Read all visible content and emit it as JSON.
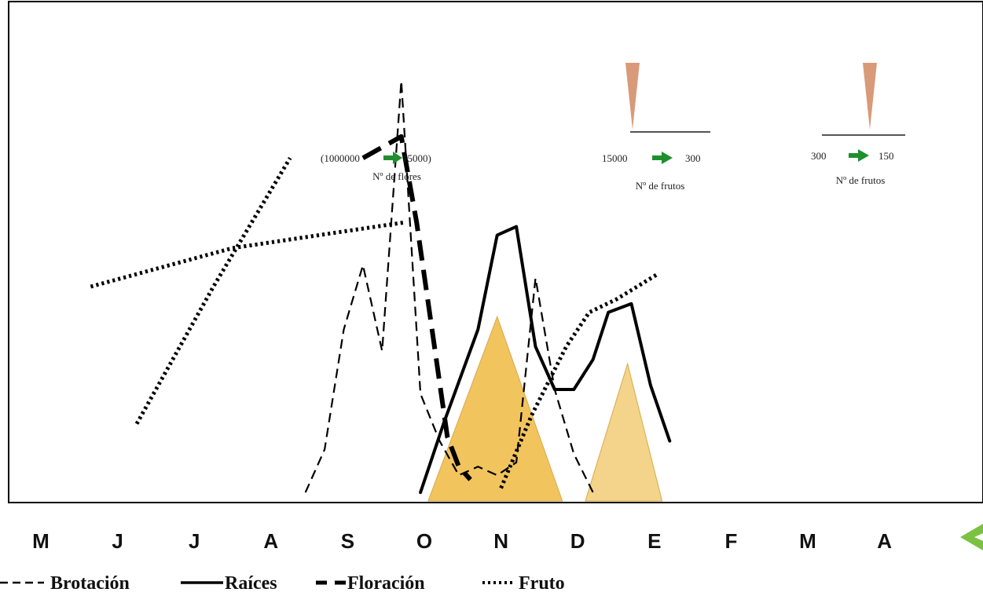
{
  "chart_data": {
    "type": "line",
    "x_axis": {
      "months": [
        "M",
        "J",
        "J",
        "A",
        "S",
        "O",
        "N",
        "D",
        "E",
        "F",
        "M",
        "A"
      ]
    },
    "y_axis": {
      "range": [
        0,
        100
      ],
      "ticks_shown": false
    },
    "grid": false,
    "series": [
      {
        "name": "Brotación",
        "style": "thin-dashed",
        "color": "#000000",
        "points": [
          [
            6.9,
            2
          ],
          [
            7.4,
            12
          ],
          [
            7.9,
            40
          ],
          [
            8.4,
            55
          ],
          [
            8.9,
            35
          ],
          [
            9.4,
            98
          ],
          [
            9.9,
            25
          ],
          [
            10.4,
            14
          ],
          [
            10.9,
            6
          ],
          [
            11.4,
            8
          ],
          [
            11.9,
            6
          ],
          [
            12.4,
            9
          ],
          [
            12.9,
            52
          ],
          [
            13.4,
            26
          ],
          [
            13.9,
            11
          ],
          [
            14.4,
            2
          ]
        ]
      },
      {
        "name": "Raíces",
        "style": "solid",
        "color": "#000000",
        "points": [
          [
            9.9,
            2
          ],
          [
            10.5,
            18
          ],
          [
            11.4,
            40
          ],
          [
            11.9,
            62
          ],
          [
            12.4,
            64
          ],
          [
            12.9,
            36
          ],
          [
            13.4,
            26
          ],
          [
            13.9,
            26
          ],
          [
            14.4,
            33
          ],
          [
            14.8,
            44
          ],
          [
            15.4,
            46
          ],
          [
            15.9,
            27
          ],
          [
            16.4,
            14
          ]
        ]
      },
      {
        "name": "Floración",
        "style": "thick-dashed",
        "color": "#000000",
        "points": [
          [
            8.4,
            80
          ],
          [
            9.4,
            85
          ],
          [
            9.8,
            65
          ],
          [
            10.2,
            40
          ],
          [
            10.6,
            15
          ],
          [
            10.9,
            8
          ],
          [
            11.2,
            5
          ]
        ]
      },
      {
        "name": "Fruto",
        "style": "dotted",
        "color": "#000000",
        "points": [
          [
            1.3,
            50
          ],
          [
            5.0,
            59
          ],
          [
            9.5,
            65
          ]
        ]
      },
      {
        "name": "Fruto",
        "style": "dotted",
        "color": "#000000",
        "points": [
          [
            2.5,
            18
          ],
          [
            4.5,
            50
          ],
          [
            6.5,
            80
          ]
        ]
      },
      {
        "name": "Fruto",
        "style": "dotted",
        "color": "#000000",
        "points": [
          [
            12.0,
            3
          ],
          [
            12.8,
            20
          ],
          [
            13.7,
            36
          ],
          [
            14.3,
            44
          ],
          [
            15.0,
            47
          ],
          [
            16.1,
            53
          ]
        ]
      }
    ],
    "triangles": [
      {
        "x0": 10.1,
        "peak": 11.9,
        "x1": 13.6,
        "height": 43,
        "color": "#f2c45e"
      },
      {
        "x0": 14.2,
        "peak": 15.3,
        "x1": 16.2,
        "height": 32,
        "color": "#f3d48a"
      }
    ],
    "annotations": [
      {
        "line1_left": "(1000000",
        "line1_right": "15000)",
        "line2": "Nº de flores"
      },
      {
        "line1_left": "15000",
        "line1_right": "300",
        "line2": "Nº de frutos"
      },
      {
        "line1_left": "300",
        "line1_right": "150",
        "line2": "Nº de frutos"
      }
    ],
    "legend": {
      "placement": "bottom",
      "entries": [
        {
          "label": "Brotación",
          "style": "thin-dashed"
        },
        {
          "label": "Raíces",
          "style": "solid"
        },
        {
          "label": "Floración",
          "style": "thick-dashed"
        },
        {
          "label": "Fruto",
          "style": "dotted"
        }
      ]
    },
    "colors": {
      "triangle_fill": "#f2c45e",
      "arrow": "#1f8f2e",
      "wedge": "#d89a78"
    }
  }
}
